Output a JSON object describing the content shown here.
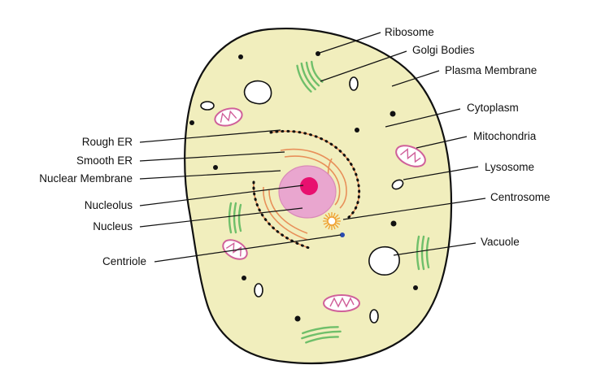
{
  "diagram": {
    "labels": {
      "ribosome": "Ribosome",
      "golgi_bodies": "Golgi Bodies",
      "plasma_membrane": "Plasma Membrane",
      "cytoplasm": "Cytoplasm",
      "mitochondria": "Mitochondria",
      "lysosome": "Lysosome",
      "centrosome": "Centrosome",
      "vacuole": "Vacuole",
      "rough_er": "Rough ER",
      "smooth_er": "Smooth ER",
      "nuclear_membrane": "Nuclear Membrane",
      "nucleolus": "Nucleolus",
      "nucleus": "Nucleus",
      "centriole": "Centriole"
    },
    "colors": {
      "cytoplasm": "#f1eebd",
      "outline": "#111111",
      "nucleus": "#e9a6cf",
      "nucleolus": "#e8106f",
      "golgi": "#6fbf6a",
      "mitochondria": "#d0609a",
      "endoplasmic_reticulum": "#e8905a",
      "centrosome": "#f0a030",
      "centriole": "#2a4bb0",
      "vacuole": "#ffffff"
    }
  }
}
